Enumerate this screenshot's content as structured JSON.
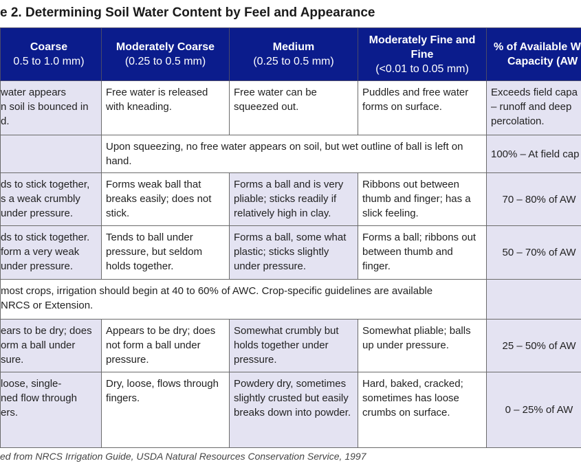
{
  "title": "e 2. Determining Soil Water Content by Feel and Appearance",
  "colors": {
    "header_bg": "#0b1c8c",
    "shade": "#e4e3f2"
  },
  "headers": [
    {
      "name": "Coarse",
      "range": "0.5 to 1.0 mm)"
    },
    {
      "name": "Moderately Coarse",
      "range": "(0.25 to 0.5 mm)"
    },
    {
      "name": "Medium",
      "range": "(0.25 to 0.5 mm)"
    },
    {
      "name": "Moderately Fine and Fine",
      "range": "(<0.01 to 0.05 mm)"
    },
    {
      "name": "% of Available W",
      "range": "Capacity (AW"
    }
  ],
  "rows": [
    {
      "c1": "water appears\nn soil is bounced in\nd.",
      "c2": "Free water is released with kneading.",
      "c3": "Free water can be squeezed out.",
      "c4": "Puddles and free water forms on surface.",
      "c5": "Exceeds field capa\n– runoff  and deep\npercolation."
    },
    {
      "merged": "Upon squeezing, no free water appears on soil, but wet outline of ball is left on hand.",
      "c5": "100% – At field cap"
    },
    {
      "c1": "ds to stick together,\ns a weak crumbly\nunder pressure.",
      "c2": "Forms weak ball that breaks easily; does not stick.",
      "c3": "Forms a ball and is very pliable; sticks readily if relatively high in clay.",
      "c4": "Ribbons out between thumb and finger; has a slick feeling.",
      "c5": "70 – 80% of AW"
    },
    {
      "c1": "ds to stick together.\n form a very weak\nunder pressure.",
      "c2": "Tends to ball under pressure, but seldom holds together.",
      "c3": "Forms a ball, some what plastic; sticks slightly under pressure.",
      "c4": "Forms a ball; ribbons out between thumb and finger.",
      "c5": "50 – 70% of AW"
    },
    {
      "note": "most crops, irrigation should begin at 40 to 60% of AWC. Crop-specific guidelines are available\n NRCS or Extension."
    },
    {
      "c1": "ears to be dry; does\norm a ball under\nsure.",
      "c2": "Appears to be dry; does not form a ball under pressure.",
      "c3": "Somewhat crumbly but holds together under pressure.",
      "c4": "Somewhat pliable; balls up under pressure.",
      "c5": "25 – 50% of AW"
    },
    {
      "c1": "loose, single-\nned flow through\ners.",
      "c2": "Dry, loose, flows through fingers.",
      "c3": "Powdery dry, sometimes slightly crusted but easily breaks down into powder.",
      "c4": "Hard, baked, cracked; sometimes has loose crumbs on surface.",
      "c5": "0 – 25% of AW"
    }
  ],
  "footer": "ed from NRCS Irrigation Guide, USDA Natural Resources Conservation Service, 1997"
}
